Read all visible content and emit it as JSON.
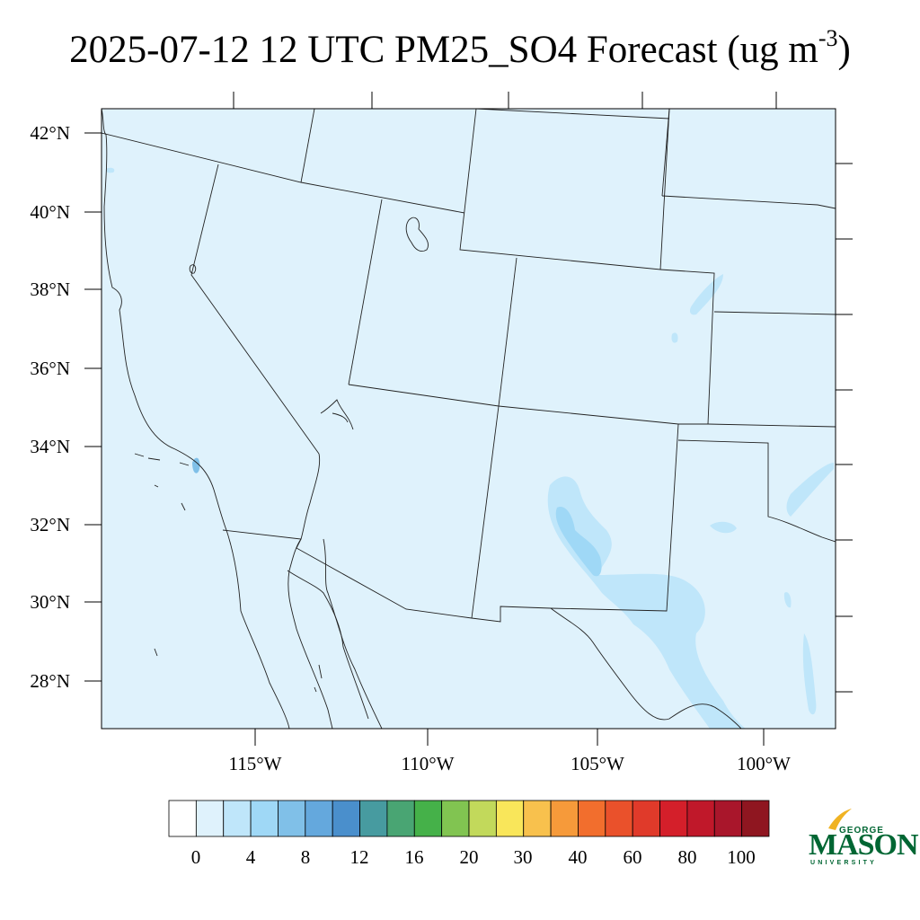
{
  "title": {
    "main": "2025-07-12 12 UTC PM25_SO4 Forecast (ug m",
    "sup": "-3",
    "close": ")"
  },
  "lat_labels": [
    "42°N",
    "40°N",
    "38°N",
    "36°N",
    "34°N",
    "32°N",
    "30°N",
    "28°N"
  ],
  "lon_labels": [
    "115°W",
    "110°W",
    "105°W",
    "100°W"
  ],
  "colorbar": {
    "colors": [
      "#ffffff",
      "#dff2fc",
      "#bfe6fa",
      "#9fd8f6",
      "#80c0e8",
      "#64a8dd",
      "#4a8fcc",
      "#479ba0",
      "#49a573",
      "#45b149",
      "#81c451",
      "#c2d95b",
      "#f9e65a",
      "#f8c14d",
      "#f69a3a",
      "#f26e2d",
      "#ea512b",
      "#e03a2a",
      "#d41f2a",
      "#c0182a",
      "#a9162b",
      "#8f1620"
    ],
    "labels": [
      "0",
      "4",
      "8",
      "12",
      "16",
      "20",
      "30",
      "40",
      "60",
      "80",
      "100"
    ]
  },
  "logo": {
    "line1": "GEORGE",
    "line2": "MASON",
    "line3": "UNIVERSITY",
    "green": "#006633",
    "gold": "#f0b323"
  },
  "field_colors": {
    "background": "#dff2fc",
    "level2": "#bfe6fa",
    "level3": "#9fd8f6",
    "level4": "#80c0e8"
  }
}
